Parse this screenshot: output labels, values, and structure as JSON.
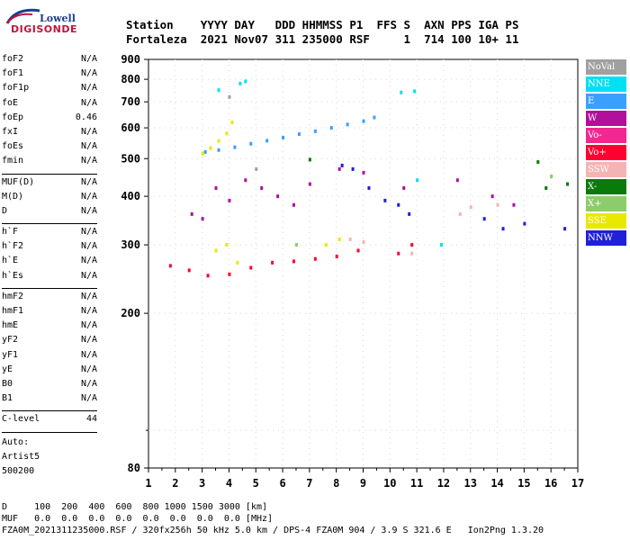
{
  "logo": {
    "line1": "Lowell",
    "line2": "DIGISONDE"
  },
  "header": {
    "labels": [
      "Station",
      "YYYY",
      "DAY",
      "DDD",
      "HHMMSS",
      "P1",
      "FFS",
      "S",
      "AXN",
      "PPS",
      "IGA",
      "PS"
    ],
    "values": [
      "Fortaleza",
      "2021",
      "Nov07",
      "311",
      "235000",
      "RSF",
      "",
      "1",
      "714",
      "100",
      "10+",
      "11"
    ],
    "line1": "Station    YYYY DAY   DDD HHMMSS P1  FFS S  AXN PPS IGA PS",
    "line2": "Fortaleza  2021 Nov07 311 235000 RSF     1  714 100 10+ 11"
  },
  "params": {
    "group1": [
      {
        "name": "foF2",
        "value": "N/A"
      },
      {
        "name": "foF1",
        "value": "N/A"
      },
      {
        "name": "foF1p",
        "value": "N/A"
      },
      {
        "name": "foE",
        "value": "N/A"
      },
      {
        "name": "foEp",
        "value": "0.46"
      },
      {
        "name": "fxI",
        "value": "N/A"
      },
      {
        "name": "foEs",
        "value": "N/A"
      },
      {
        "name": "fmin",
        "value": "N/A"
      }
    ],
    "group2": [
      {
        "name": "MUF(D)",
        "value": "N/A"
      },
      {
        "name": "M(D)",
        "value": "N/A"
      },
      {
        "name": "D",
        "value": "N/A"
      }
    ],
    "group3": [
      {
        "name": "h`F",
        "value": "N/A"
      },
      {
        "name": "h`F2",
        "value": "N/A"
      },
      {
        "name": "h`E",
        "value": "N/A"
      },
      {
        "name": "h`Es",
        "value": "N/A"
      }
    ],
    "group4": [
      {
        "name": "hmF2",
        "value": "N/A"
      },
      {
        "name": "hmF1",
        "value": "N/A"
      },
      {
        "name": "hmE",
        "value": "N/A"
      },
      {
        "name": "yF2",
        "value": "N/A"
      },
      {
        "name": "yF1",
        "value": "N/A"
      },
      {
        "name": "yE",
        "value": "N/A"
      },
      {
        "name": "B0",
        "value": "N/A"
      },
      {
        "name": "B1",
        "value": "N/A"
      }
    ],
    "group5": [
      {
        "name": "C-level",
        "value": "44"
      }
    ]
  },
  "auto": {
    "line1": "Auto:",
    "line2": "Artist5",
    "line3": "500200"
  },
  "legend": [
    {
      "label": "NoVal",
      "color": "#a0a0a0"
    },
    {
      "label": "NNE",
      "color": "#00e0f0"
    },
    {
      "label": "E",
      "color": "#3aa0ff"
    },
    {
      "label": "W",
      "color": "#b0109c"
    },
    {
      "label": "Vo-",
      "color": "#f02890"
    },
    {
      "label": "Vo+",
      "color": "#ff0030"
    },
    {
      "label": "SSW",
      "color": "#f4b4b4"
    },
    {
      "label": "X-",
      "color": "#0a7a0a"
    },
    {
      "label": "X+",
      "color": "#8ccc6a"
    },
    {
      "label": "SSE",
      "color": "#e8e800"
    },
    {
      "label": "NNW",
      "color": "#2020d8"
    }
  ],
  "footer": {
    "line1": "D     100  200  400  600  800 1000 1500 3000 [km]",
    "line2": "MUF   0.0  0.0  0.0  0.0  0.0  0.0  0.0  0.0 [MHz]",
    "line3": "FZA0M_2021311235000.RSF / 320fx256h 50 kHz 5.0 km / DPS-4 FZA0M 904 / 3.9 S 321.6 E   Ion2Png 1.3.20"
  },
  "chart_data": {
    "type": "scatter",
    "title": "",
    "xlabel": "",
    "ylabel": "",
    "x_unit": "MHz",
    "y_unit": "km",
    "xlim": [
      1,
      17
    ],
    "ylim": [
      80,
      900
    ],
    "y_scale": "log",
    "x_ticks": [
      "1",
      "2",
      "3",
      "4",
      "5",
      "6",
      "7",
      "8",
      "9",
      "10",
      "11",
      "12",
      "13",
      "14",
      "15",
      "16",
      "17"
    ],
    "y_ticks": [
      "80",
      "200",
      "300",
      "400",
      "500",
      "600",
      "700",
      "800",
      "900"
    ],
    "grid": false,
    "legend_position": "right",
    "series": [
      {
        "name": "E",
        "color": "#3aa0ff",
        "points": [
          [
            3.1,
            520
          ],
          [
            3.6,
            526
          ],
          [
            4.2,
            535
          ],
          [
            4.8,
            546
          ],
          [
            5.4,
            556
          ],
          [
            6.0,
            566
          ],
          [
            6.6,
            578
          ],
          [
            7.2,
            588
          ],
          [
            7.8,
            600
          ],
          [
            8.4,
            612
          ],
          [
            9.0,
            624
          ],
          [
            9.4,
            638
          ]
        ]
      },
      {
        "name": "SSE",
        "color": "#e8e800",
        "points": [
          [
            3.0,
            515
          ],
          [
            3.3,
            532
          ],
          [
            3.6,
            555
          ],
          [
            3.9,
            580
          ],
          [
            4.1,
            620
          ],
          [
            3.5,
            290
          ],
          [
            3.9,
            300
          ],
          [
            4.3,
            270
          ],
          [
            7.6,
            300
          ],
          [
            8.1,
            310
          ]
        ]
      },
      {
        "name": "Vo+",
        "color": "#ff0030",
        "points": [
          [
            1.8,
            265
          ],
          [
            2.5,
            258
          ],
          [
            3.2,
            250
          ],
          [
            4.0,
            252
          ],
          [
            4.8,
            262
          ],
          [
            5.6,
            270
          ],
          [
            6.4,
            272
          ],
          [
            7.2,
            276
          ],
          [
            8.0,
            280
          ],
          [
            8.8,
            290
          ],
          [
            10.3,
            285
          ],
          [
            10.8,
            300
          ]
        ]
      },
      {
        "name": "W",
        "color": "#b0109c",
        "points": [
          [
            2.6,
            360
          ],
          [
            3.0,
            350
          ],
          [
            3.5,
            420
          ],
          [
            4.0,
            390
          ],
          [
            4.6,
            440
          ],
          [
            5.2,
            420
          ],
          [
            5.8,
            400
          ],
          [
            6.4,
            380
          ],
          [
            7.0,
            430
          ],
          [
            8.1,
            470
          ],
          [
            9.0,
            460
          ],
          [
            10.5,
            420
          ],
          [
            12.5,
            440
          ],
          [
            13.8,
            400
          ],
          [
            14.6,
            380
          ]
        ]
      },
      {
        "name": "NNW",
        "color": "#2020d8",
        "points": [
          [
            8.2,
            480
          ],
          [
            8.6,
            470
          ],
          [
            9.2,
            420
          ],
          [
            9.8,
            390
          ],
          [
            10.3,
            380
          ],
          [
            10.7,
            360
          ],
          [
            13.5,
            350
          ],
          [
            14.2,
            330
          ],
          [
            15.0,
            340
          ],
          [
            16.5,
            330
          ]
        ]
      },
      {
        "name": "NNE",
        "color": "#00e0f0",
        "points": [
          [
            3.6,
            750
          ],
          [
            4.4,
            780
          ],
          [
            4.6,
            790
          ],
          [
            10.4,
            740
          ],
          [
            10.9,
            745
          ],
          [
            11.0,
            440
          ],
          [
            11.9,
            300
          ]
        ]
      },
      {
        "name": "SSW",
        "color": "#f4b4b4",
        "points": [
          [
            8.5,
            310
          ],
          [
            9.0,
            305
          ],
          [
            10.8,
            285
          ],
          [
            12.6,
            360
          ],
          [
            13.0,
            375
          ],
          [
            14.0,
            380
          ]
        ]
      },
      {
        "name": "X-",
        "color": "#0a7a0a",
        "points": [
          [
            7.0,
            497
          ],
          [
            15.5,
            490
          ],
          [
            15.8,
            420
          ],
          [
            16.6,
            430
          ]
        ]
      },
      {
        "name": "X+",
        "color": "#8ccc6a",
        "points": [
          [
            6.5,
            300
          ],
          [
            16.0,
            450
          ]
        ]
      },
      {
        "name": "NoVal",
        "color": "#a0a0a0",
        "points": [
          [
            4.0,
            720
          ],
          [
            5.0,
            470
          ]
        ]
      }
    ]
  }
}
